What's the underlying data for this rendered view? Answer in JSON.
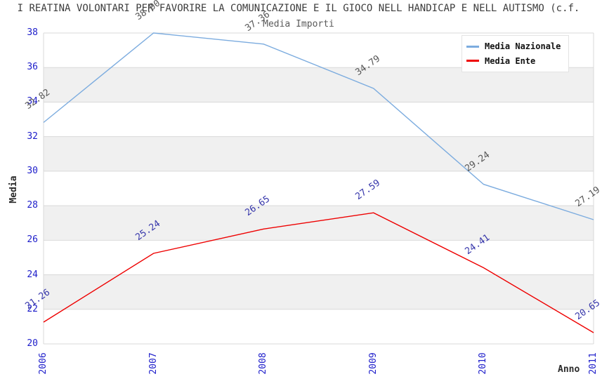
{
  "title": "I REATINA VOLONTARI PER FAVORIRE LA COMUNICAZIONE E IL GIOCO NELL HANDICAP E NELL AUTISMO (c.f.",
  "chart_data": {
    "type": "line",
    "title": "Media Importi",
    "xlabel": "Anno",
    "ylabel": "Media",
    "x": [
      2006,
      2007,
      2008,
      2009,
      2010,
      2011
    ],
    "xticks": [
      "2006",
      "2007",
      "2008",
      "2009",
      "2010",
      "2011"
    ],
    "yticks": [
      "38",
      "36",
      "34",
      "32",
      "30",
      "28",
      "26",
      "24",
      "22",
      "20"
    ],
    "ylim": [
      20,
      38
    ],
    "grid": true,
    "background_bands": true,
    "band_gray": "#f0f0f0",
    "gridline_color": "#d9d9d9",
    "tick_color": "#1d1dca",
    "legend_position": "top-right",
    "series": [
      {
        "name": "Media Nazionale",
        "color": "#7cacdf",
        "label_color": "#555555",
        "values": [
          32.82,
          38.0,
          37.36,
          34.79,
          29.24,
          27.19
        ],
        "labels": [
          "32.82",
          "38.00",
          "37.36",
          "34.79",
          "29.24",
          "27.19"
        ]
      },
      {
        "name": "Media Ente",
        "color": "#ee0000",
        "label_color": "#3434aa",
        "values": [
          21.26,
          25.24,
          26.65,
          27.59,
          24.41,
          20.65
        ],
        "labels": [
          "21.26",
          "25.24",
          "26.65",
          "27.59",
          "24.41",
          "20.65"
        ]
      }
    ]
  }
}
